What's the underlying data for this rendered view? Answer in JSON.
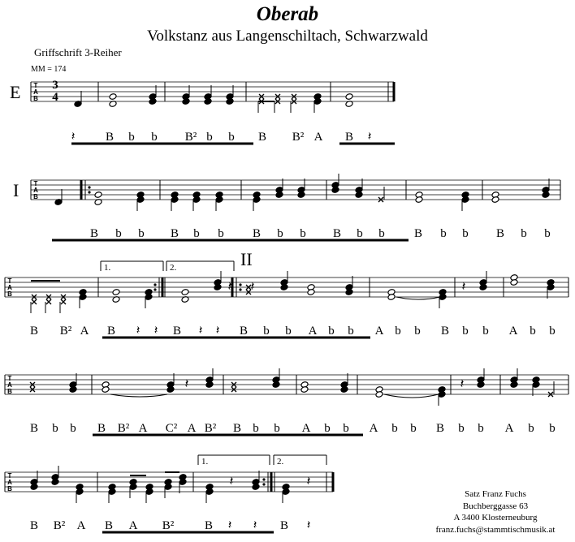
{
  "header": {
    "title": "Oberab",
    "subtitle": "Volkstanz aus Langenschiltach, Schwarzwald",
    "instrument": "Griffschrift 3-Reiher",
    "tempo": "MM = 174"
  },
  "parts": {
    "e": "E",
    "i": "I",
    "ii": "II"
  },
  "time_signature": {
    "numerator": "3",
    "denominator": "4"
  },
  "tab_clef": [
    "T",
    "A",
    "B"
  ],
  "volta": {
    "first": "1.",
    "second": "2."
  },
  "bass_rows": [
    [
      "𝄽",
      "B",
      "b",
      "b",
      "B²",
      "b",
      "b",
      "B",
      "B²",
      "A",
      "B",
      "𝄽"
    ],
    [
      "B",
      "b",
      "b",
      "B",
      "b",
      "b",
      "B",
      "b",
      "b",
      "B",
      "b",
      "b",
      "B",
      "b",
      "b",
      "B",
      "b",
      "b"
    ],
    [
      "B",
      "B²",
      "A",
      "B",
      "𝄽",
      "𝄽",
      "B",
      "𝄽",
      "𝄽",
      "B",
      "b",
      "b",
      "A",
      "b",
      "b",
      "A",
      "b",
      "b",
      "B",
      "b",
      "b",
      "A",
      "b",
      "b"
    ],
    [
      "B",
      "b",
      "b",
      "B",
      "B²",
      "A",
      "C²",
      "A",
      "B²",
      "B",
      "b",
      "b",
      "A",
      "b",
      "b",
      "A",
      "b",
      "b",
      "B",
      "b",
      "b",
      "A",
      "b",
      "b"
    ],
    [
      "B",
      "B²",
      "A",
      "B",
      "A",
      "B²",
      "B",
      "𝄽",
      "𝄽",
      "B",
      "𝄽"
    ]
  ],
  "credits": {
    "line1": "Satz Franz Fuchs",
    "line2": "Buchberggasse 63",
    "line3": "A 3400 Klosterneuburg",
    "line4": "franz.fuchs@stammtischmusik.at"
  }
}
